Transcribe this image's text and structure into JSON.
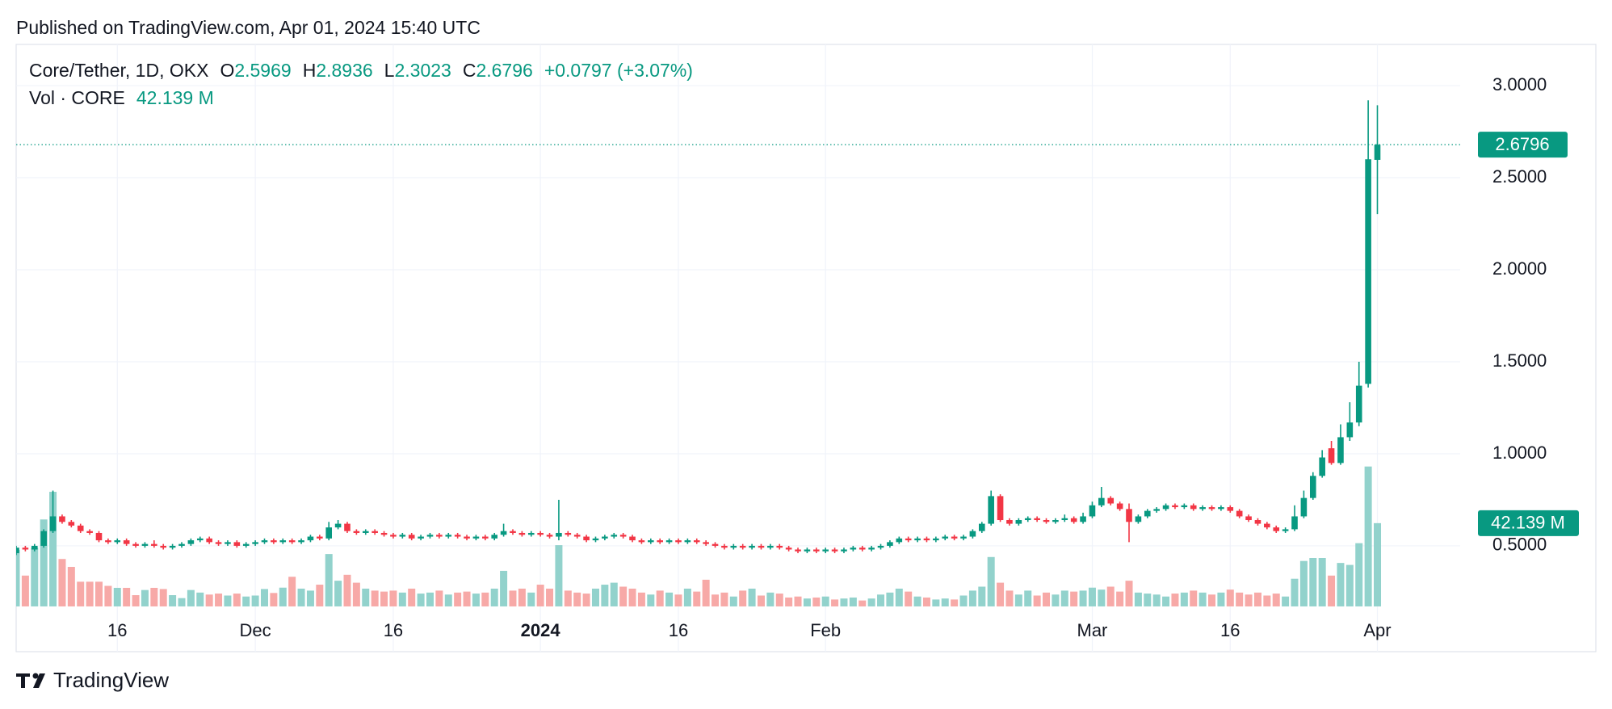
{
  "published": "Published on TradingView.com, Apr 01, 2024 15:40 UTC",
  "brand": "TradingView",
  "chart_data": {
    "type": "candlestick",
    "symbol": "Core/Tether, 1D, OKX",
    "o_label": "O",
    "h_label": "H",
    "l_label": "L",
    "c_label": "C",
    "change": "+0.0797 (+3.07%)",
    "up_color": "#089981",
    "down_color": "#f23645",
    "up_volume_color": "#92d2cc",
    "down_volume_color": "#f7a9a7",
    "grid": true,
    "xlim": [
      0,
      157
    ],
    "ylim": [
      -0.075,
      3.224
    ],
    "y2lim": [
      -22.9,
      284.4
    ],
    "xticks": [
      {
        "value": 11,
        "label": "16"
      },
      {
        "value": 26,
        "label": "Dec"
      },
      {
        "value": 41,
        "label": "16"
      },
      {
        "value": 57,
        "label": "2024",
        "bold": true
      },
      {
        "value": 72,
        "label": "16"
      },
      {
        "value": 88,
        "label": "Feb"
      },
      {
        "value": 117,
        "label": "Mar"
      },
      {
        "value": 132,
        "label": "16"
      },
      {
        "value": 148,
        "label": "Apr"
      }
    ],
    "yticks": [
      {
        "value": 0.5,
        "label": "0.5000"
      },
      {
        "value": 1,
        "label": "1.0000"
      },
      {
        "value": 1.5,
        "label": "1.5000"
      },
      {
        "value": 2,
        "label": "2.0000"
      },
      {
        "value": 2.5,
        "label": "2.5000"
      },
      {
        "value": 3,
        "label": "3.0000"
      }
    ],
    "ohlc": [
      [
        0.46,
        0.5,
        0.45,
        0.49
      ],
      [
        0.49,
        0.5,
        0.47,
        0.48
      ],
      [
        0.48,
        0.51,
        0.47,
        0.5
      ],
      [
        0.5,
        0.59,
        0.49,
        0.58
      ],
      [
        0.58,
        0.8,
        0.57,
        0.66
      ],
      [
        0.66,
        0.67,
        0.62,
        0.63
      ],
      [
        0.63,
        0.64,
        0.6,
        0.61
      ],
      [
        0.61,
        0.62,
        0.57,
        0.58
      ],
      [
        0.58,
        0.59,
        0.56,
        0.57
      ],
      [
        0.57,
        0.58,
        0.52,
        0.53
      ],
      [
        0.53,
        0.54,
        0.51,
        0.52
      ],
      [
        0.52,
        0.54,
        0.51,
        0.53
      ],
      [
        0.53,
        0.54,
        0.5,
        0.51
      ],
      [
        0.51,
        0.52,
        0.49,
        0.5
      ],
      [
        0.5,
        0.52,
        0.49,
        0.51
      ],
      [
        0.51,
        0.53,
        0.49,
        0.5
      ],
      [
        0.5,
        0.51,
        0.48,
        0.49
      ],
      [
        0.49,
        0.51,
        0.48,
        0.5
      ],
      [
        0.5,
        0.52,
        0.49,
        0.51
      ],
      [
        0.51,
        0.54,
        0.5,
        0.53
      ],
      [
        0.53,
        0.55,
        0.52,
        0.54
      ],
      [
        0.54,
        0.55,
        0.51,
        0.52
      ],
      [
        0.52,
        0.53,
        0.5,
        0.51
      ],
      [
        0.51,
        0.53,
        0.5,
        0.52
      ],
      [
        0.52,
        0.53,
        0.49,
        0.5
      ],
      [
        0.5,
        0.52,
        0.49,
        0.51
      ],
      [
        0.51,
        0.53,
        0.5,
        0.52
      ],
      [
        0.52,
        0.54,
        0.51,
        0.53
      ],
      [
        0.53,
        0.54,
        0.51,
        0.52
      ],
      [
        0.52,
        0.54,
        0.51,
        0.53
      ],
      [
        0.53,
        0.54,
        0.51,
        0.52
      ],
      [
        0.52,
        0.54,
        0.51,
        0.53
      ],
      [
        0.53,
        0.56,
        0.52,
        0.55
      ],
      [
        0.55,
        0.56,
        0.53,
        0.54
      ],
      [
        0.54,
        0.63,
        0.53,
        0.6
      ],
      [
        0.6,
        0.64,
        0.59,
        0.62
      ],
      [
        0.62,
        0.63,
        0.57,
        0.58
      ],
      [
        0.58,
        0.59,
        0.56,
        0.57
      ],
      [
        0.57,
        0.59,
        0.56,
        0.58
      ],
      [
        0.58,
        0.59,
        0.56,
        0.57
      ],
      [
        0.57,
        0.58,
        0.55,
        0.56
      ],
      [
        0.56,
        0.57,
        0.54,
        0.55
      ],
      [
        0.55,
        0.57,
        0.54,
        0.56
      ],
      [
        0.56,
        0.57,
        0.53,
        0.54
      ],
      [
        0.54,
        0.56,
        0.53,
        0.55
      ],
      [
        0.55,
        0.57,
        0.54,
        0.56
      ],
      [
        0.56,
        0.57,
        0.54,
        0.55
      ],
      [
        0.55,
        0.57,
        0.54,
        0.56
      ],
      [
        0.56,
        0.57,
        0.54,
        0.55
      ],
      [
        0.55,
        0.56,
        0.53,
        0.54
      ],
      [
        0.54,
        0.56,
        0.53,
        0.55
      ],
      [
        0.55,
        0.56,
        0.53,
        0.54
      ],
      [
        0.54,
        0.57,
        0.53,
        0.56
      ],
      [
        0.56,
        0.62,
        0.55,
        0.58
      ],
      [
        0.58,
        0.59,
        0.56,
        0.57
      ],
      [
        0.57,
        0.58,
        0.55,
        0.56
      ],
      [
        0.56,
        0.58,
        0.55,
        0.57
      ],
      [
        0.57,
        0.58,
        0.55,
        0.56
      ],
      [
        0.56,
        0.57,
        0.54,
        0.55
      ],
      [
        0.55,
        0.75,
        0.53,
        0.57
      ],
      [
        0.57,
        0.58,
        0.55,
        0.56
      ],
      [
        0.56,
        0.57,
        0.54,
        0.55
      ],
      [
        0.55,
        0.56,
        0.52,
        0.53
      ],
      [
        0.53,
        0.55,
        0.52,
        0.54
      ],
      [
        0.54,
        0.56,
        0.53,
        0.55
      ],
      [
        0.55,
        0.57,
        0.54,
        0.56
      ],
      [
        0.56,
        0.57,
        0.54,
        0.55
      ],
      [
        0.55,
        0.56,
        0.52,
        0.53
      ],
      [
        0.53,
        0.54,
        0.51,
        0.52
      ],
      [
        0.52,
        0.54,
        0.51,
        0.53
      ],
      [
        0.53,
        0.54,
        0.51,
        0.52
      ],
      [
        0.52,
        0.54,
        0.51,
        0.53
      ],
      [
        0.53,
        0.54,
        0.51,
        0.52
      ],
      [
        0.52,
        0.54,
        0.51,
        0.53
      ],
      [
        0.53,
        0.54,
        0.51,
        0.52
      ],
      [
        0.52,
        0.53,
        0.5,
        0.51
      ],
      [
        0.51,
        0.52,
        0.49,
        0.5
      ],
      [
        0.5,
        0.51,
        0.48,
        0.49
      ],
      [
        0.49,
        0.51,
        0.48,
        0.5
      ],
      [
        0.5,
        0.51,
        0.48,
        0.49
      ],
      [
        0.49,
        0.51,
        0.48,
        0.5
      ],
      [
        0.5,
        0.51,
        0.48,
        0.49
      ],
      [
        0.49,
        0.51,
        0.48,
        0.5
      ],
      [
        0.5,
        0.51,
        0.48,
        0.49
      ],
      [
        0.49,
        0.5,
        0.47,
        0.48
      ],
      [
        0.48,
        0.49,
        0.46,
        0.47
      ],
      [
        0.47,
        0.49,
        0.46,
        0.48
      ],
      [
        0.48,
        0.49,
        0.46,
        0.47
      ],
      [
        0.47,
        0.49,
        0.46,
        0.48
      ],
      [
        0.48,
        0.49,
        0.46,
        0.47
      ],
      [
        0.47,
        0.49,
        0.46,
        0.48
      ],
      [
        0.48,
        0.5,
        0.47,
        0.49
      ],
      [
        0.49,
        0.5,
        0.47,
        0.48
      ],
      [
        0.48,
        0.5,
        0.47,
        0.49
      ],
      [
        0.49,
        0.51,
        0.48,
        0.5
      ],
      [
        0.5,
        0.53,
        0.49,
        0.52
      ],
      [
        0.52,
        0.55,
        0.51,
        0.54
      ],
      [
        0.54,
        0.55,
        0.52,
        0.53
      ],
      [
        0.53,
        0.55,
        0.52,
        0.54
      ],
      [
        0.54,
        0.55,
        0.52,
        0.53
      ],
      [
        0.53,
        0.55,
        0.52,
        0.54
      ],
      [
        0.54,
        0.56,
        0.53,
        0.55
      ],
      [
        0.55,
        0.56,
        0.53,
        0.54
      ],
      [
        0.54,
        0.56,
        0.53,
        0.55
      ],
      [
        0.55,
        0.59,
        0.54,
        0.58
      ],
      [
        0.58,
        0.63,
        0.57,
        0.62
      ],
      [
        0.62,
        0.8,
        0.61,
        0.77
      ],
      [
        0.77,
        0.78,
        0.63,
        0.64
      ],
      [
        0.64,
        0.65,
        0.61,
        0.62
      ],
      [
        0.62,
        0.65,
        0.61,
        0.64
      ],
      [
        0.64,
        0.66,
        0.63,
        0.65
      ],
      [
        0.65,
        0.66,
        0.63,
        0.64
      ],
      [
        0.64,
        0.65,
        0.62,
        0.63
      ],
      [
        0.63,
        0.65,
        0.62,
        0.64
      ],
      [
        0.64,
        0.67,
        0.63,
        0.65
      ],
      [
        0.65,
        0.66,
        0.62,
        0.63
      ],
      [
        0.63,
        0.68,
        0.62,
        0.66
      ],
      [
        0.66,
        0.74,
        0.65,
        0.72
      ],
      [
        0.72,
        0.82,
        0.71,
        0.76
      ],
      [
        0.76,
        0.77,
        0.72,
        0.73
      ],
      [
        0.73,
        0.74,
        0.69,
        0.7
      ],
      [
        0.7,
        0.73,
        0.52,
        0.63
      ],
      [
        0.63,
        0.67,
        0.62,
        0.66
      ],
      [
        0.66,
        0.7,
        0.65,
        0.69
      ],
      [
        0.69,
        0.71,
        0.68,
        0.7
      ],
      [
        0.7,
        0.73,
        0.69,
        0.72
      ],
      [
        0.72,
        0.73,
        0.7,
        0.71
      ],
      [
        0.71,
        0.73,
        0.7,
        0.72
      ],
      [
        0.72,
        0.73,
        0.69,
        0.7
      ],
      [
        0.7,
        0.72,
        0.69,
        0.71
      ],
      [
        0.71,
        0.72,
        0.69,
        0.7
      ],
      [
        0.7,
        0.72,
        0.69,
        0.71
      ],
      [
        0.71,
        0.72,
        0.68,
        0.69
      ],
      [
        0.69,
        0.7,
        0.65,
        0.66
      ],
      [
        0.66,
        0.67,
        0.63,
        0.64
      ],
      [
        0.64,
        0.65,
        0.61,
        0.62
      ],
      [
        0.62,
        0.63,
        0.59,
        0.6
      ],
      [
        0.6,
        0.61,
        0.57,
        0.58
      ],
      [
        0.58,
        0.6,
        0.57,
        0.59
      ],
      [
        0.59,
        0.72,
        0.58,
        0.66
      ],
      [
        0.66,
        0.8,
        0.65,
        0.76
      ],
      [
        0.76,
        0.9,
        0.75,
        0.88
      ],
      [
        0.88,
        1.02,
        0.87,
        0.98
      ],
      [
        1.03,
        1.07,
        0.94,
        0.95
      ],
      [
        0.95,
        1.16,
        0.94,
        1.09
      ],
      [
        1.09,
        1.28,
        1.07,
        1.17
      ],
      [
        1.17,
        1.5,
        1.15,
        1.37
      ],
      [
        1.38,
        2.92,
        1.36,
        2.6
      ],
      [
        2.5969,
        2.8936,
        2.3023,
        2.6796
      ]
    ],
    "volume": {
      "name": "Vol · CORE",
      "axis": "y2",
      "last_label": "42.139 M",
      "values": [
        28.6,
        15.6,
        29.7,
        44,
        58,
        24,
        20,
        12.5,
        12.5,
        12.5,
        10.4,
        9.4,
        9.4,
        5.7,
        8.3,
        9.4,
        8.8,
        5.7,
        4.2,
        8.3,
        7,
        6,
        6.5,
        5.5,
        6.5,
        5,
        5.5,
        8.8,
        6.8,
        9.5,
        15,
        9,
        8,
        11,
        26.5,
        13,
        16,
        12,
        9,
        8,
        7.5,
        8,
        7,
        9,
        6.5,
        7,
        8,
        6,
        7,
        7.5,
        6.5,
        7,
        9,
        18,
        8,
        9,
        7,
        11,
        9,
        31,
        8,
        7,
        6.5,
        9,
        11,
        12,
        10,
        9,
        7,
        6,
        8,
        7,
        6,
        9,
        7.5,
        13.5,
        6,
        7,
        5,
        8,
        9,
        5.5,
        7,
        6.5,
        4.5,
        5,
        4,
        4.5,
        5,
        3.5,
        4,
        4.5,
        3,
        4,
        6,
        7,
        9,
        7.5,
        5,
        4.5,
        3.5,
        4,
        3.5,
        5.5,
        8,
        10,
        25,
        12,
        8,
        6,
        8,
        5.5,
        7,
        6,
        8,
        7.5,
        8,
        9.5,
        8.5,
        10,
        7.5,
        13,
        7,
        6.5,
        6,
        5,
        6.5,
        7,
        8,
        7,
        6,
        7,
        8.5,
        7,
        6,
        7,
        5.5,
        6.5,
        5,
        14,
        23,
        24.5,
        24.5,
        15.6,
        22,
        21,
        32,
        70.8,
        42.139
      ]
    }
  }
}
